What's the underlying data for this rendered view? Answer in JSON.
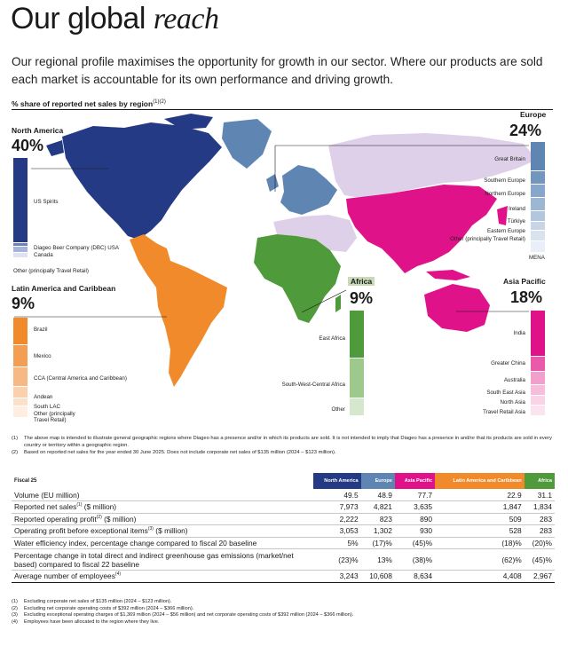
{
  "title": {
    "main": "Our global",
    "italic": "reach"
  },
  "intro": "Our regional profile maximises the opportunity for growth in our sector. Where our products are sold each market is accountable for its own performance and driving growth.",
  "subheading": {
    "text": "% share of reported net sales by region",
    "refs": "(1)(2)"
  },
  "regions": {
    "north_america": {
      "name": "North America",
      "pct": "40%",
      "color": "#243a85",
      "segments": [
        {
          "label": "US Spirits",
          "share": 0.86,
          "color": "#243a85"
        },
        {
          "label": "Diageo Beer Company (DBC) USA",
          "share": 0.04,
          "color": "#6f7fb7"
        },
        {
          "label": "Canada",
          "share": 0.06,
          "color": "#a8b3d8"
        },
        {
          "label": "Other (principally Travel Retail)",
          "share": 0.04,
          "color": "#dfe3f1"
        }
      ]
    },
    "europe": {
      "name": "Europe",
      "pct": "24%",
      "color": "#5f86b3",
      "segments": [
        {
          "label": "Great Britain",
          "share": 0.27,
          "color": "#5f86b3"
        },
        {
          "label": "Southern Europe",
          "share": 0.12,
          "color": "#7396be"
        },
        {
          "label": "Northern Europe",
          "share": 0.12,
          "color": "#87a6c9"
        },
        {
          "label": "Ireland",
          "share": 0.12,
          "color": "#9db6d4"
        },
        {
          "label": "Türkiye",
          "share": 0.1,
          "color": "#b3c6de"
        },
        {
          "label": "Eastern Europe",
          "share": 0.08,
          "color": "#c7d5e7"
        },
        {
          "label": "Other (principally Travel Retail)",
          "share": 0.1,
          "color": "#d9e3ef"
        },
        {
          "label": "MENA",
          "share": 0.09,
          "color": "#e9eff6"
        }
      ]
    },
    "latin_america": {
      "name": "Latin America and Caribbean",
      "pct": "9%",
      "color": "#f08a2b",
      "segments": [
        {
          "label": "Brazil",
          "share": 0.28,
          "color": "#f08a2b"
        },
        {
          "label": "Mexico",
          "share": 0.22,
          "color": "#f39e53"
        },
        {
          "label": "CCA (Central America and Caribbean)",
          "share": 0.2,
          "color": "#f6b983"
        },
        {
          "label": "Andean",
          "share": 0.12,
          "color": "#f9d1ae"
        },
        {
          "label": "South LAC",
          "share": 0.08,
          "color": "#fbe1ca"
        },
        {
          "label": "Other (principally Travel Retail)",
          "share": 0.1,
          "color": "#fdeee1"
        }
      ]
    },
    "africa": {
      "name": "Africa",
      "pct": "9%",
      "color": "#4f9a3a",
      "segments": [
        {
          "label": "East Africa",
          "share": 0.46,
          "color": "#4f9a3a"
        },
        {
          "label": "South-West-Central Africa",
          "share": 0.38,
          "color": "#9dc98c"
        },
        {
          "label": "Other",
          "share": 0.16,
          "color": "#d5e8cc"
        }
      ]
    },
    "asia_pacific": {
      "name": "Asia Pacific",
      "pct": "18%",
      "color": "#e0128a",
      "segments": [
        {
          "label": "India",
          "share": 0.44,
          "color": "#e0128a"
        },
        {
          "label": "Greater China",
          "share": 0.14,
          "color": "#ea5aaa"
        },
        {
          "label": "Australia",
          "share": 0.13,
          "color": "#f39fcb"
        },
        {
          "label": "South East Asia",
          "share": 0.1,
          "color": "#f7bedb"
        },
        {
          "label": "North Asia",
          "share": 0.09,
          "color": "#f9d3e6"
        },
        {
          "label": "Travel Retail Asia",
          "share": 0.1,
          "color": "#fbe4ef"
        }
      ]
    }
  },
  "map_notes": [
    {
      "ref": "(1)",
      "text": "The above map is intended to illustrate general geographic regions where Diageo has a presence and/or in which its products are sold. It is not intended to imply that Diageo has a presence in and/or that its products are sold in every country or territory within a geographic region."
    },
    {
      "ref": "(2)",
      "text": "Based on reported net sales for the year ended 30 June 2025. Does not include corporate net sales of $135 million (2024 – $123 million)."
    }
  ],
  "table": {
    "corner": "Fiscal 25",
    "columns": [
      {
        "label": "North America",
        "color": "#243a85"
      },
      {
        "label": "Europe",
        "color": "#5f86b3"
      },
      {
        "label": "Asia Pacific",
        "color": "#e0128a"
      },
      {
        "label": "Latin America and Caribbean",
        "color": "#f08a2b"
      },
      {
        "label": "Africa",
        "color": "#4f9a3a"
      }
    ],
    "rows": [
      {
        "label": "Volume (EU million)",
        "ref": "",
        "values": [
          "49.5",
          "48.9",
          "77.7",
          "22.9",
          "31.1"
        ]
      },
      {
        "label": "Reported net sales",
        "ref": "(1)",
        "suffix": " ($ million)",
        "values": [
          "7,973",
          "4,821",
          "3,635",
          "1,847",
          "1,834"
        ]
      },
      {
        "label": "Reported operating profit",
        "ref": "(2)",
        "suffix": " ($ million)",
        "values": [
          "2,222",
          "823",
          "890",
          "509",
          "283"
        ]
      },
      {
        "label": "Operating profit before exceptional items",
        "ref": "(3)",
        "suffix": " ($ million)",
        "values": [
          "3,053",
          "1,302",
          "930",
          "528",
          "283"
        ]
      },
      {
        "label": "Water efficiency index, percentage change compared to fiscal 20 baseline",
        "ref": "",
        "values": [
          "5%",
          "(17)%",
          "(45)%",
          "(18)%",
          "(20)%"
        ]
      },
      {
        "label": "Percentage change in total direct and indirect greenhouse gas emissions (market/net based) compared to fiscal 22 baseline",
        "ref": "",
        "values": [
          "(23)%",
          "13%",
          "(38)%",
          "(62)%",
          "(45)%"
        ]
      },
      {
        "label": "Average number of employees",
        "ref": "(4)",
        "values": [
          "3,243",
          "10,608",
          "8,634",
          "4,408",
          "2,967"
        ]
      }
    ]
  },
  "table_notes": [
    {
      "ref": "(1)",
      "text": "Excluding corporate net sales of $135 million (2024 – $123 million)."
    },
    {
      "ref": "(2)",
      "text": "Excluding net corporate operating costs of $392 million (2024 – $366 million)."
    },
    {
      "ref": "(3)",
      "text": "Excluding exceptional operating charges of $1,369 million (2024 – $56 million) and net corporate operating costs of $392 million (2024 – $366 million)."
    },
    {
      "ref": "(4)",
      "text": "Employees have been allocated to the region where they live."
    }
  ]
}
